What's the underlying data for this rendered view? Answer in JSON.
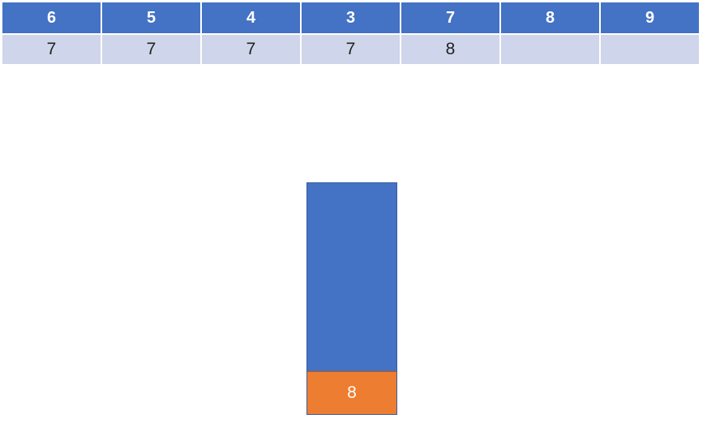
{
  "table": {
    "header": [
      "6",
      "5",
      "4",
      "3",
      "7",
      "8",
      "9"
    ],
    "values": [
      "7",
      "7",
      "7",
      "7",
      "8",
      "",
      ""
    ]
  },
  "stack": {
    "items": [
      "8"
    ]
  },
  "colors": {
    "header_bg": "#4472c4",
    "value_bg": "#cfd5ea",
    "stack_bg": "#4472c4",
    "stack_item_bg": "#ed7d31"
  }
}
